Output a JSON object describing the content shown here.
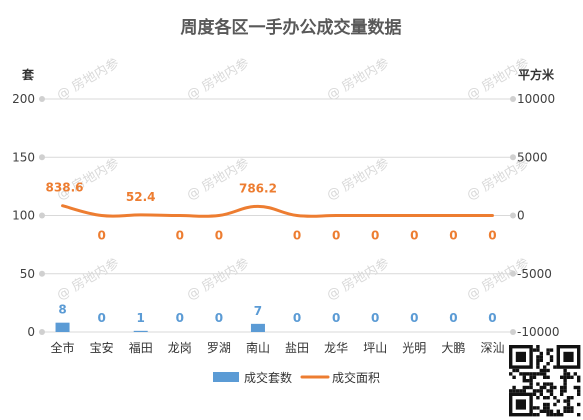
{
  "chart_data": {
    "type": "bar",
    "title": "周度各区一手办公成交量数据",
    "left_unit": "套",
    "right_unit": "平方米",
    "categories": [
      "全市",
      "宝安",
      "福田",
      "龙岗",
      "罗湖",
      "南山",
      "盐田",
      "龙华",
      "坪山",
      "光明",
      "大鹏",
      "深汕"
    ],
    "series": [
      {
        "name": "成交套数",
        "type": "bar",
        "axis": "left",
        "color": "#5b9bd5",
        "values": [
          8,
          0,
          1,
          0,
          0,
          7,
          0,
          0,
          0,
          0,
          0,
          0
        ],
        "labels": [
          "8",
          "0",
          "1",
          "0",
          "0",
          "7",
          "0",
          "0",
          "0",
          "0",
          "0",
          "0"
        ]
      },
      {
        "name": "成交面积",
        "type": "line",
        "axis": "right",
        "color": "#ed7d31",
        "values": [
          838.6,
          0,
          52.4,
          0,
          0,
          786.2,
          0,
          0,
          0,
          0,
          0,
          0
        ],
        "labels": [
          "838.6",
          "0",
          "52.4",
          "0",
          "0",
          "786.2",
          "0",
          "0",
          "0",
          "0",
          "0",
          "0"
        ]
      }
    ],
    "y_left": {
      "min": 0,
      "max": 200,
      "ticks": [
        0,
        50,
        100,
        150,
        200
      ],
      "tick_labels": [
        "0",
        "50",
        "100",
        "150",
        "200"
      ]
    },
    "y_right": {
      "min": -10000,
      "max": 10000,
      "ticks": [
        -10000,
        -5000,
        0,
        5000,
        10000
      ],
      "tick_labels": [
        "-10000",
        "-5000",
        "0",
        "5000",
        "10000"
      ]
    },
    "grid": true,
    "legend_position": "bottom",
    "watermark": "@ 房地内参",
    "qr_code": true
  }
}
